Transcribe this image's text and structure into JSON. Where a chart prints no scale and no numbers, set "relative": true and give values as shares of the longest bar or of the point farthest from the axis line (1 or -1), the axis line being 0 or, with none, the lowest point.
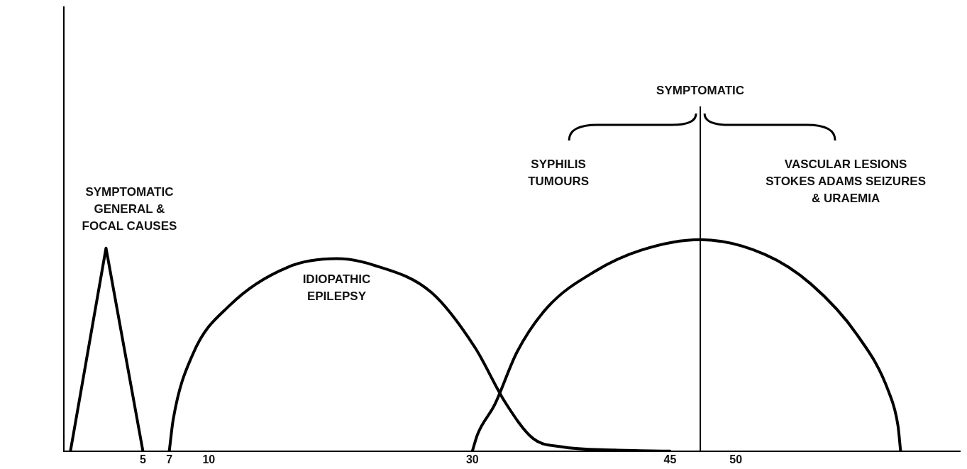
{
  "chart_data": {
    "type": "line",
    "relative": true,
    "xlim": [
      -1,
      67
    ],
    "xticks": [
      5,
      7,
      10,
      30,
      45,
      50
    ],
    "grid": false,
    "marker": "none",
    "series": [
      {
        "name": "SYMPTOMATIC\nGENERAL &\nFOCAL CAUSES",
        "color": "#000000",
        "x": [
          -0.5,
          2.2,
          5
        ],
        "values": [
          0,
          0.96,
          0
        ]
      },
      {
        "name": "IDIOPATHIC\nEPILEPSY",
        "color": "#000000",
        "x": [
          7,
          7.3,
          8.8,
          11.6,
          16,
          19.7,
          22.5,
          26.9,
          30.2,
          32.5,
          34.6,
          36.8,
          40.8,
          45
        ],
        "values": [
          0,
          0.15,
          0.46,
          0.69,
          0.87,
          0.91,
          0.88,
          0.75,
          0.49,
          0.23,
          0.06,
          0.02,
          0.005,
          0
        ]
      },
      {
        "color": "#000000",
        "x": [
          30,
          30.4,
          31.7,
          33.4,
          35.7,
          39.3,
          42.8,
          47.3,
          52.2,
          55.7,
          59.2,
          61.6,
          62.3,
          62.5
        ],
        "values": [
          0,
          0.08,
          0.22,
          0.47,
          0.68,
          0.85,
          0.95,
          1,
          0.93,
          0.79,
          0.55,
          0.28,
          0.12,
          0
        ]
      }
    ],
    "ref_lines": [
      {
        "axis": "x",
        "value": 47.3,
        "label": "SYMPTOMATIC"
      }
    ],
    "annotations": [
      "SYPHILIS\nTUMOURS",
      "VASCULAR LESIONS\nSTOKES ADAMS SEIZURES\n& URAEMIA"
    ]
  }
}
